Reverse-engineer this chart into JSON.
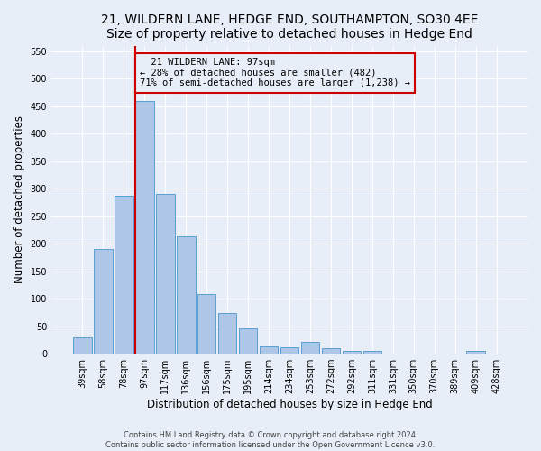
{
  "title": "21, WILDERN LANE, HEDGE END, SOUTHAMPTON, SO30 4EE",
  "subtitle": "Size of property relative to detached houses in Hedge End",
  "xlabel": "Distribution of detached houses by size in Hedge End",
  "ylabel": "Number of detached properties",
  "footer_line1": "Contains HM Land Registry data © Crown copyright and database right 2024.",
  "footer_line2": "Contains public sector information licensed under the Open Government Licence v3.0.",
  "categories": [
    "39sqm",
    "58sqm",
    "78sqm",
    "97sqm",
    "117sqm",
    "136sqm",
    "156sqm",
    "175sqm",
    "195sqm",
    "214sqm",
    "234sqm",
    "253sqm",
    "272sqm",
    "292sqm",
    "311sqm",
    "331sqm",
    "350sqm",
    "370sqm",
    "389sqm",
    "409sqm",
    "428sqm"
  ],
  "values": [
    30,
    190,
    287,
    460,
    290,
    213,
    109,
    74,
    46,
    13,
    12,
    21,
    10,
    5,
    5,
    0,
    0,
    0,
    0,
    5,
    0
  ],
  "bar_color": "#aec6e8",
  "bar_edge_color": "#5a9fd4",
  "marker_label": "21 WILDERN LANE: 97sqm",
  "marker_pct_smaller": "28% of detached houses are smaller (482)",
  "marker_pct_larger": "71% of semi-detached houses are larger (1,238)",
  "marker_line_color": "#cc0000",
  "annotation_box_edge_color": "#cc0000",
  "ylim": [
    0,
    560
  ],
  "yticks": [
    0,
    50,
    100,
    150,
    200,
    250,
    300,
    350,
    400,
    450,
    500,
    550
  ],
  "bg_color": "#e8eef8",
  "grid_color": "#ffffff",
  "title_fontsize": 10,
  "axis_label_fontsize": 8.5,
  "tick_fontsize": 7,
  "footer_fontsize": 6,
  "annotation_fontsize": 7.5
}
